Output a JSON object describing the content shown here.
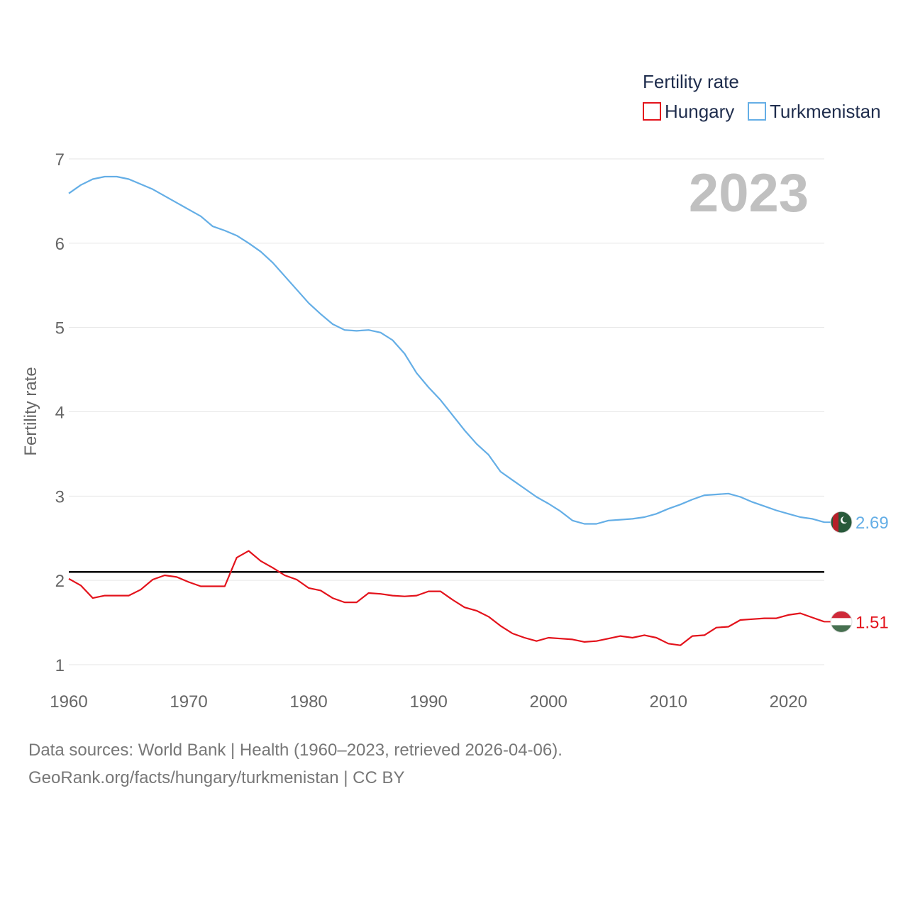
{
  "chart_data": {
    "type": "line",
    "title": "",
    "year_label": "2023",
    "ylabel": "Fertility rate",
    "xlabel": "",
    "xlim": [
      1960,
      2023
    ],
    "ylim": [
      0.75,
      7.2
    ],
    "yticks": [
      1,
      2,
      3,
      4,
      5,
      6,
      7
    ],
    "xticks": [
      1960,
      1970,
      1980,
      1990,
      2000,
      2010,
      2020
    ],
    "reference_line": 2.1,
    "legend": {
      "title": "Fertility rate",
      "position": "top-right"
    },
    "x": [
      1960,
      1961,
      1962,
      1963,
      1964,
      1965,
      1966,
      1967,
      1968,
      1969,
      1970,
      1971,
      1972,
      1973,
      1974,
      1975,
      1976,
      1977,
      1978,
      1979,
      1980,
      1981,
      1982,
      1983,
      1984,
      1985,
      1986,
      1987,
      1988,
      1989,
      1990,
      1991,
      1992,
      1993,
      1994,
      1995,
      1996,
      1997,
      1998,
      1999,
      2000,
      2001,
      2002,
      2003,
      2004,
      2005,
      2006,
      2007,
      2008,
      2009,
      2010,
      2011,
      2012,
      2013,
      2014,
      2015,
      2016,
      2017,
      2018,
      2019,
      2020,
      2021,
      2022,
      2023
    ],
    "series": [
      {
        "name": "Hungary",
        "color": "#e3121b",
        "end_label": "1.51",
        "values": [
          2.02,
          1.94,
          1.79,
          1.82,
          1.82,
          1.82,
          1.89,
          2.01,
          2.06,
          2.04,
          1.98,
          1.93,
          1.93,
          1.93,
          2.27,
          2.35,
          2.23,
          2.15,
          2.06,
          2.01,
          1.91,
          1.88,
          1.79,
          1.74,
          1.74,
          1.85,
          1.84,
          1.82,
          1.81,
          1.82,
          1.87,
          1.87,
          1.77,
          1.68,
          1.64,
          1.57,
          1.46,
          1.37,
          1.32,
          1.28,
          1.32,
          1.31,
          1.3,
          1.27,
          1.28,
          1.31,
          1.34,
          1.32,
          1.35,
          1.32,
          1.25,
          1.23,
          1.34,
          1.35,
          1.44,
          1.45,
          1.53,
          1.54,
          1.55,
          1.55,
          1.59,
          1.61,
          1.56,
          1.51
        ]
      },
      {
        "name": "Turkmenistan",
        "color": "#64aee6",
        "end_label": "2.69",
        "values": [
          6.59,
          6.69,
          6.76,
          6.79,
          6.79,
          6.76,
          6.7,
          6.64,
          6.56,
          6.48,
          6.4,
          6.32,
          6.2,
          6.15,
          6.09,
          6.0,
          5.9,
          5.77,
          5.61,
          5.45,
          5.29,
          5.16,
          5.04,
          4.97,
          4.96,
          4.97,
          4.94,
          4.85,
          4.69,
          4.46,
          4.29,
          4.14,
          3.96,
          3.78,
          3.62,
          3.49,
          3.29,
          3.19,
          3.09,
          2.99,
          2.91,
          2.82,
          2.71,
          2.67,
          2.67,
          2.71,
          2.72,
          2.73,
          2.75,
          2.79,
          2.85,
          2.9,
          2.96,
          3.01,
          3.02,
          3.03,
          2.99,
          2.93,
          2.88,
          2.83,
          2.79,
          2.75,
          2.73,
          2.69
        ]
      }
    ]
  },
  "footer": {
    "line1": "Data sources: World Bank | Health (1960–2023, retrieved 2026-04-06).",
    "line2": "GeoRank.org/facts/hungary/turkmenistan | CC BY"
  }
}
